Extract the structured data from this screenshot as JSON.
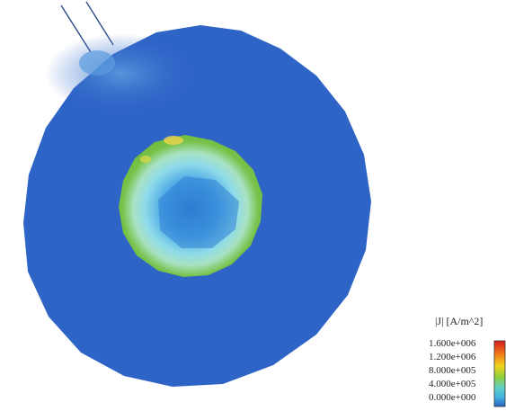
{
  "legend": {
    "title": "|J| [A/m^2]",
    "ticks": [
      "1.600e+006",
      "1.200e+006",
      "8.000e+005",
      "4.000e+005",
      "0.000e+000"
    ],
    "colors": [
      "#d7191c",
      "#f2b11b",
      "#8ccf3a",
      "#3fb2e0",
      "#2a5fc4"
    ]
  },
  "colors": {
    "outer_disc": "#2f64c7",
    "hotspot": "#4e8fd6",
    "inner_rim": "#7cc447",
    "inner_mid": "#8fd6ea",
    "inner_core": "#3c8edb",
    "hot_edge": "#e8d24a",
    "wire": "#2c4a8a"
  }
}
